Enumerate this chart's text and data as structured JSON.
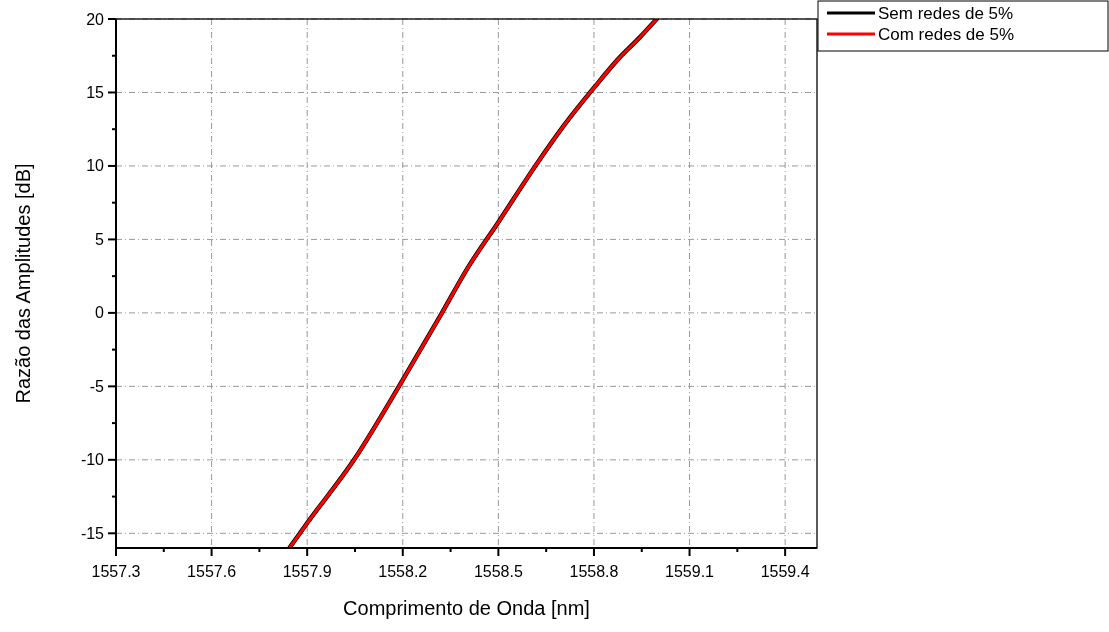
{
  "chart_data": {
    "type": "line",
    "xlabel": "Comprimento de Onda [nm]",
    "ylabel": "Razão das Amplitudes [dB]",
    "xlim": [
      1557.3,
      1559.5
    ],
    "xticks": [
      1557.3,
      1557.6,
      1557.9,
      1558.2,
      1558.5,
      1558.8,
      1559.1,
      1559.4
    ],
    "ylim": [
      -16,
      20
    ],
    "yticks": [
      -15,
      -10,
      -5,
      0,
      5,
      10,
      15,
      20
    ],
    "grid": true,
    "legend": "top right",
    "line_style": "solid",
    "marker": "none",
    "series": [
      {
        "name": "Sem redes de 5%",
        "color": "#000000",
        "x": [
          1557.844,
          1557.9,
          1558.047,
          1558.2,
          1558.323,
          1558.402,
          1558.5,
          1558.616,
          1558.706,
          1558.8,
          1558.876,
          1558.943,
          1558.997
        ],
        "values": [
          -16,
          -14.3,
          -10,
          -4.56,
          0,
          3,
          6.17,
          10,
          12.76,
          15.32,
          17.27,
          18.73,
          20
        ]
      },
      {
        "name": "Com redes de 5%",
        "color": "#ff0000",
        "x": [
          1557.844,
          1557.9,
          1558.047,
          1558.2,
          1558.323,
          1558.402,
          1558.5,
          1558.616,
          1558.706,
          1558.8,
          1558.876,
          1558.943,
          1558.997
        ],
        "values": [
          -16,
          -14.3,
          -10,
          -4.56,
          0,
          3,
          6.17,
          10,
          12.76,
          15.32,
          17.27,
          18.73,
          20
        ]
      }
    ]
  }
}
